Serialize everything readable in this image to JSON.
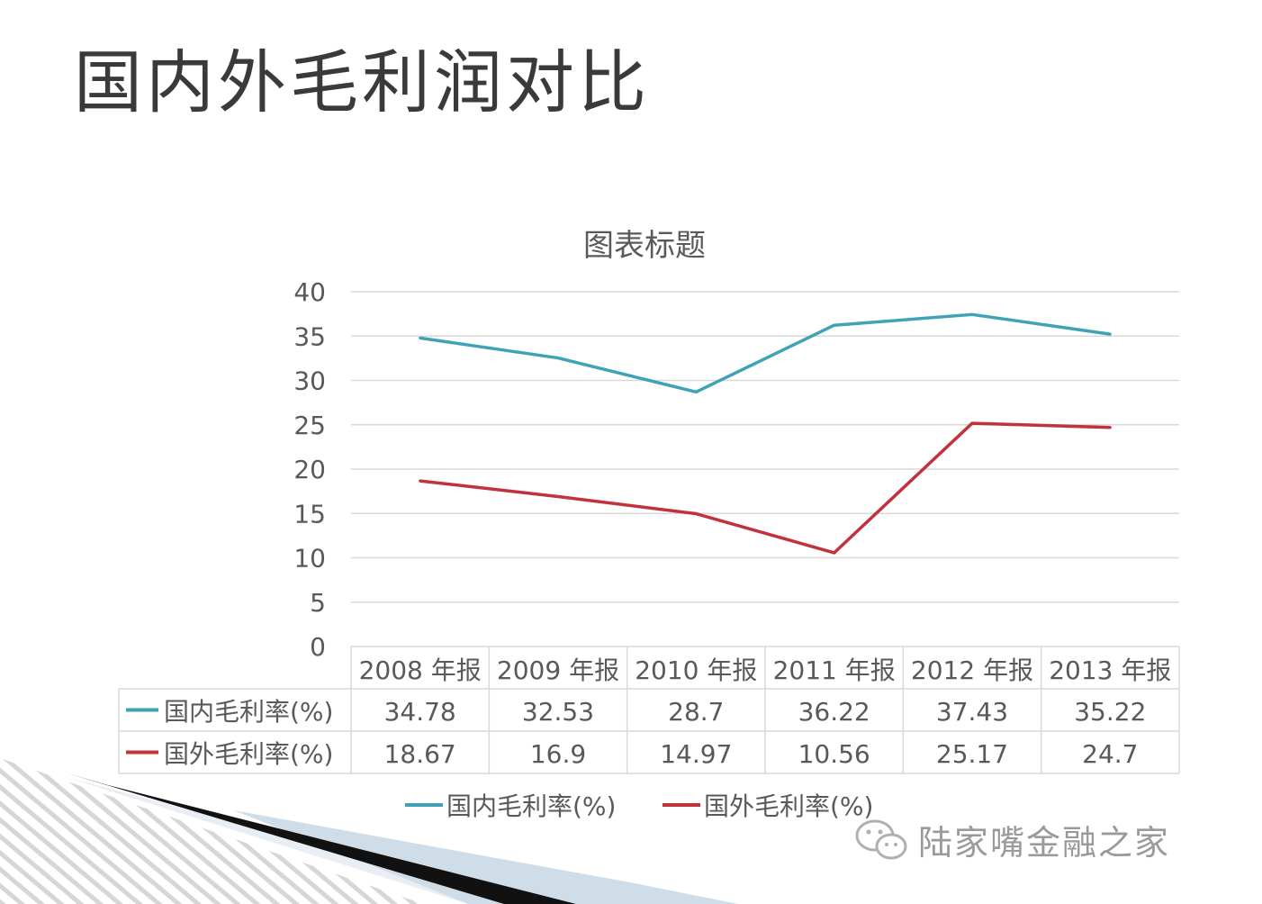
{
  "slide": {
    "title": "国内外毛利润对比"
  },
  "watermark": {
    "text": "陆家嘴金融之家",
    "icon": "wechat-icon"
  },
  "colors": {
    "domestic": "#3fa3b5",
    "foreign": "#c2323a",
    "grid": "#d9d9d9",
    "axis_text": "#595959"
  },
  "chart_data": {
    "type": "line",
    "title": "图表标题",
    "categories": [
      "2008 年报",
      "2009 年报",
      "2010 年报",
      "2011 年报",
      "2012 年报",
      "2013 年报"
    ],
    "series": [
      {
        "name": "国内毛利率(%)",
        "values": [
          34.78,
          32.53,
          28.7,
          36.22,
          37.43,
          35.22
        ]
      },
      {
        "name": "国外毛利率(%)",
        "values": [
          18.67,
          16.9,
          14.97,
          10.56,
          25.17,
          24.7
        ]
      }
    ],
    "yticks": [
      "0",
      "5",
      "10",
      "15",
      "20",
      "25",
      "30",
      "35",
      "40"
    ],
    "ylim": [
      0,
      40
    ],
    "grid": true,
    "legend": "bottom",
    "data_table": true
  }
}
